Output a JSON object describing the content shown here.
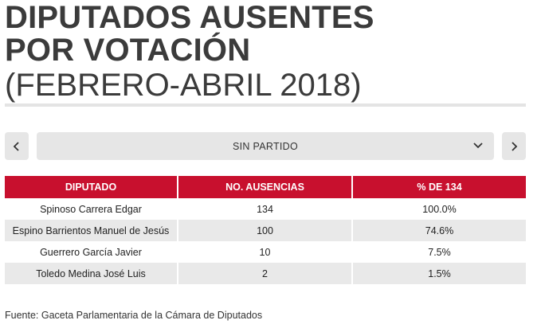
{
  "title": {
    "line1": "DIPUTADOS AUSENTES",
    "line2": "POR VOTACIÓN",
    "subtitle": "(FEBRERO-ABRIL 2018)"
  },
  "selector": {
    "prev_icon": "chevron-left-icon",
    "next_icon": "chevron-right-icon",
    "selected": "SIN PARTIDO",
    "dropdown_icon": "chevron-down-icon"
  },
  "table": {
    "headers": [
      "DIPUTADO",
      "NO. AUSENCIAS",
      "% DE 134"
    ],
    "rows": [
      [
        "Spinoso Carrera Edgar",
        "134",
        "100.0%"
      ],
      [
        "Espino Barrientos Manuel de Jesús",
        "100",
        "74.6%"
      ],
      [
        "Guerrero García Javier",
        "10",
        "7.5%"
      ],
      [
        "Toledo Medina José Luis",
        "2",
        "1.5%"
      ]
    ]
  },
  "source": "Fuente: Gaceta Parlamentaria de la Cámara de Diputados",
  "colors": {
    "header_bg": "#c8102e",
    "stripe": "#e9e9e9",
    "control_bg": "#e6e6e6"
  }
}
